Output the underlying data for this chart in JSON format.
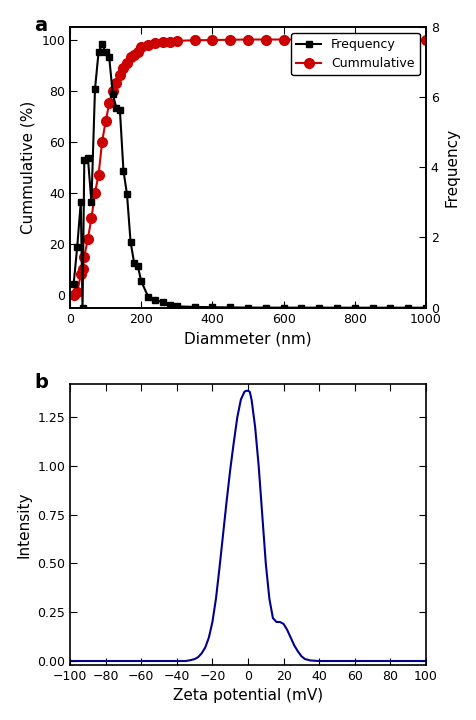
{
  "panel_a_label": "a",
  "panel_b_label": "b",
  "freq_x": [
    10,
    20,
    30,
    35,
    40,
    50,
    60,
    70,
    80,
    90,
    100,
    110,
    120,
    130,
    140,
    150,
    160,
    170,
    180,
    190,
    200,
    220,
    240,
    260,
    280,
    300,
    350,
    400,
    450,
    500,
    550,
    600,
    650,
    700,
    750,
    800,
    850,
    900,
    950,
    1000
  ],
  "freq_y": [
    9,
    23,
    40,
    0,
    56,
    57,
    40,
    83,
    97,
    100,
    97,
    95,
    81,
    76,
    75,
    52,
    43,
    25,
    17,
    16,
    10,
    4,
    3,
    2,
    1,
    0.5,
    0.3,
    0.2,
    0.1,
    0.05,
    0.03,
    0.02,
    0.01,
    0.01,
    0.005,
    0.003,
    0.002,
    0.001,
    0.001,
    0
  ],
  "cum_x": [
    10,
    20,
    30,
    35,
    40,
    50,
    60,
    70,
    80,
    90,
    100,
    110,
    120,
    130,
    140,
    150,
    160,
    170,
    180,
    190,
    200,
    220,
    240,
    260,
    280,
    300,
    350,
    400,
    450,
    500,
    550,
    600,
    650,
    700,
    750,
    800,
    850,
    900,
    950,
    1000
  ],
  "cum_y": [
    0,
    1,
    8,
    10,
    15,
    22,
    30,
    40,
    47,
    60,
    68,
    75,
    80,
    83,
    86,
    89,
    91,
    93,
    94,
    95,
    97,
    98,
    98.5,
    99,
    99.2,
    99.5,
    99.7,
    99.8,
    99.9,
    100,
    100,
    100,
    100,
    100,
    100,
    100,
    100,
    100,
    100,
    100
  ],
  "freq_color": "#000000",
  "cum_color": "#cc0000",
  "freq_marker": "s",
  "cum_marker": "o",
  "xlabel_a": "Diammeter (nm)",
  "ylabel_left": "Cummulative (%)",
  "ylabel_right": "Frequency",
  "xlim_a": [
    0,
    1000
  ],
  "ylim_left": [
    -5,
    105
  ],
  "ylim_right": [
    0,
    8
  ],
  "legend_freq": "Frequency",
  "legend_cum": "Cummulative",
  "zeta_x": [
    -100,
    -90,
    -80,
    -70,
    -60,
    -50,
    -40,
    -35,
    -32,
    -30,
    -28,
    -26,
    -24,
    -22,
    -20,
    -18,
    -16,
    -14,
    -12,
    -10,
    -8,
    -6,
    -4,
    -2,
    -1,
    0,
    1,
    2,
    4,
    6,
    8,
    10,
    12,
    14,
    16,
    18,
    20,
    22,
    24,
    26,
    28,
    30,
    32,
    35,
    38,
    40,
    42,
    45,
    50,
    60,
    70,
    80,
    90,
    100
  ],
  "zeta_y": [
    0,
    0,
    0,
    0,
    0,
    0,
    0,
    0,
    0.005,
    0.01,
    0.02,
    0.04,
    0.07,
    0.12,
    0.2,
    0.32,
    0.48,
    0.65,
    0.82,
    0.98,
    1.12,
    1.25,
    1.34,
    1.38,
    1.385,
    1.385,
    1.38,
    1.34,
    1.2,
    1.0,
    0.75,
    0.5,
    0.32,
    0.22,
    0.2,
    0.2,
    0.19,
    0.16,
    0.12,
    0.08,
    0.05,
    0.025,
    0.01,
    0.003,
    0.001,
    0,
    0,
    0,
    0,
    0,
    0,
    0,
    0,
    0
  ],
  "xlabel_b": "Zeta potential (mV)",
  "ylabel_b": "Intensity",
  "xlim_b": [
    -100,
    100
  ],
  "ylim_b": [
    -0.02,
    1.42
  ],
  "zeta_color": "#00008b",
  "yticks_b": [
    0.0,
    0.25,
    0.5,
    0.75,
    1.0,
    1.25
  ],
  "yticks_right": [
    0,
    2,
    4,
    6,
    8
  ],
  "yticks_left": [
    0,
    20,
    40,
    60,
    80,
    100
  ],
  "xticks_a": [
    0,
    200,
    400,
    600,
    800,
    1000
  ],
  "xticks_b": [
    -100,
    -80,
    -60,
    -40,
    -20,
    0,
    20,
    40,
    60,
    80,
    100
  ],
  "markersize_freq": 5,
  "markersize_cum": 7,
  "linewidth": 1.5
}
